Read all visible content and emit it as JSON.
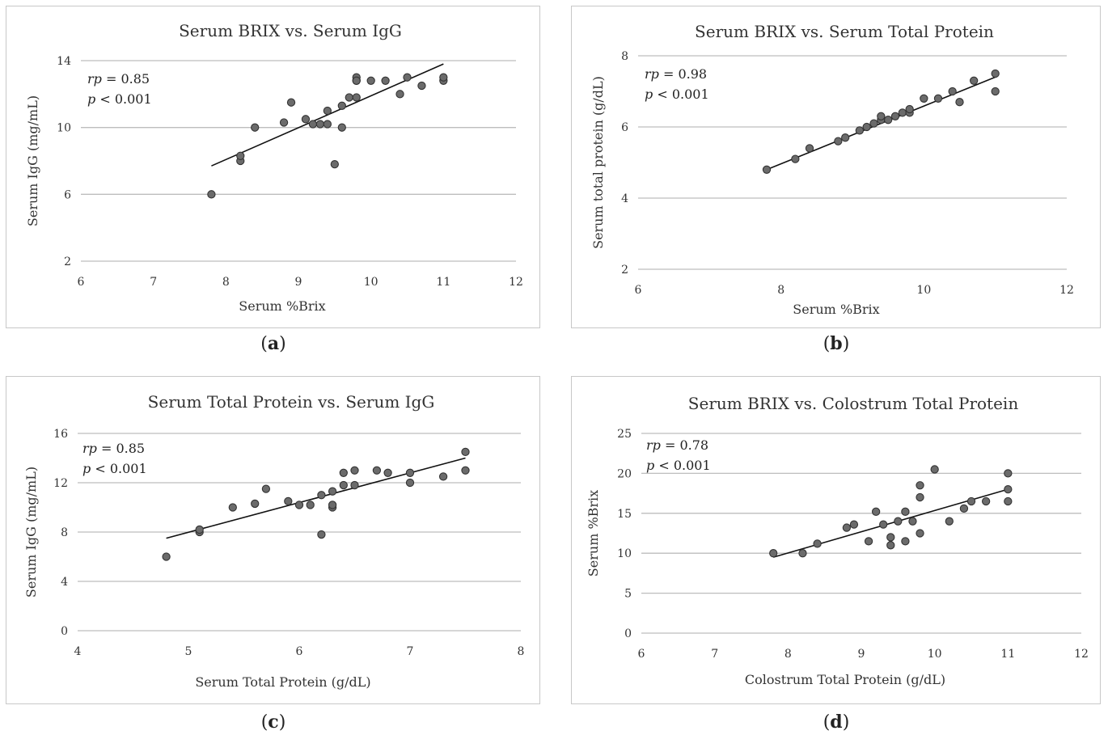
{
  "chart_data": [
    {
      "id": "a",
      "type": "scatter",
      "caption": "a",
      "title": "Serum BRIX vs. Serum IgG",
      "xlabel": "Serum %Brix",
      "ylabel": "Serum IgG (mg/mL)",
      "xlim": [
        6,
        12
      ],
      "ylim": [
        2,
        14
      ],
      "xticks": [
        6,
        7,
        8,
        9,
        10,
        11,
        12
      ],
      "yticks": [
        2,
        6,
        10,
        14
      ],
      "grid": "horizontal",
      "stat_r_label": "rp",
      "stat_r_value": "= 0.85",
      "stat_p_label": "p",
      "stat_p_value": " < 0.001",
      "trendline": {
        "x": [
          7.8,
          11.0
        ],
        "y": [
          7.7,
          13.8
        ]
      },
      "points": {
        "x": [
          7.8,
          8.2,
          8.2,
          8.4,
          8.8,
          8.9,
          9.1,
          9.2,
          9.3,
          9.4,
          9.4,
          9.5,
          9.6,
          9.6,
          9.7,
          9.8,
          9.8,
          9.8,
          9.8,
          10.0,
          10.2,
          10.4,
          10.5,
          10.7,
          11.0,
          11.0
        ],
        "y": [
          6.0,
          8.0,
          8.3,
          10.0,
          10.3,
          11.5,
          10.5,
          10.2,
          10.2,
          10.2,
          11.0,
          7.8,
          10.0,
          11.3,
          11.8,
          11.8,
          12.8,
          13.0,
          12.8,
          12.8,
          12.8,
          12.0,
          13.0,
          12.5,
          12.8,
          13.0
        ]
      }
    },
    {
      "id": "b",
      "type": "scatter",
      "caption": "b",
      "title": "Serum BRIX vs. Serum Total Protein",
      "xlabel": "Serum %Brix",
      "ylabel": "Serum total protein (g/dL)",
      "xlim": [
        6,
        12
      ],
      "ylim": [
        2,
        8
      ],
      "xticks": [
        6,
        8,
        10,
        12
      ],
      "yticks": [
        2,
        4,
        6,
        8
      ],
      "grid": "horizontal",
      "stat_r_label": "rp",
      "stat_r_value": "= 0.98",
      "stat_p_label": "p",
      "stat_p_value": " < 0.001",
      "trendline": {
        "x": [
          7.8,
          11.0
        ],
        "y": [
          4.8,
          7.4
        ]
      },
      "points": {
        "x": [
          7.8,
          8.2,
          8.4,
          8.8,
          8.9,
          9.1,
          9.2,
          9.3,
          9.4,
          9.4,
          9.5,
          9.6,
          9.7,
          9.8,
          9.8,
          10.0,
          10.2,
          10.4,
          10.5,
          10.7,
          11.0,
          11.0
        ],
        "y": [
          4.8,
          5.1,
          5.4,
          5.6,
          5.7,
          5.9,
          6.0,
          6.1,
          6.2,
          6.3,
          6.2,
          6.3,
          6.4,
          6.4,
          6.5,
          6.8,
          6.8,
          7.0,
          6.7,
          7.3,
          7.0,
          7.5
        ]
      }
    },
    {
      "id": "c",
      "type": "scatter",
      "caption": "c",
      "title": "Serum Total Protein vs. Serum IgG",
      "xlabel": "Serum Total Protein (g/dL)",
      "ylabel": "Serum IgG (mg/mL)",
      "xlim": [
        4,
        8
      ],
      "ylim": [
        0,
        16
      ],
      "xticks": [
        4,
        5,
        6,
        7,
        8
      ],
      "yticks": [
        0,
        4,
        8,
        12,
        16
      ],
      "grid": "horizontal",
      "stat_r_label": "rp",
      "stat_r_value": " = 0.85",
      "stat_p_label": "p",
      "stat_p_value": " < 0.001",
      "trendline": {
        "x": [
          4.8,
          7.5
        ],
        "y": [
          7.5,
          14.0
        ]
      },
      "points": {
        "x": [
          4.8,
          5.1,
          5.1,
          5.4,
          5.6,
          5.7,
          5.9,
          6.0,
          6.1,
          6.2,
          6.2,
          6.3,
          6.3,
          6.3,
          6.4,
          6.4,
          6.5,
          6.5,
          6.7,
          6.8,
          7.0,
          7.0,
          7.3,
          7.5,
          7.5
        ],
        "y": [
          6.0,
          8.0,
          8.2,
          10.0,
          10.3,
          11.5,
          10.5,
          10.2,
          10.2,
          11.0,
          7.8,
          10.0,
          10.2,
          11.3,
          11.8,
          12.8,
          11.8,
          13.0,
          13.0,
          12.8,
          12.8,
          12.0,
          12.5,
          13.0,
          14.5
        ]
      }
    },
    {
      "id": "d",
      "type": "scatter",
      "caption": "d",
      "title": "Serum BRIX vs. Colostrum Total Protein",
      "xlabel": "Colostrum Total Protein (g/dL)",
      "ylabel": "Serum %Brix",
      "xlim": [
        6,
        12
      ],
      "ylim": [
        0,
        25
      ],
      "xticks": [
        6,
        7,
        8,
        9,
        10,
        11,
        12
      ],
      "yticks": [
        0,
        5,
        10,
        15,
        20,
        25
      ],
      "grid": "horizontal",
      "stat_r_label": "rp",
      "stat_r_value": " = 0.78",
      "stat_p_label": "p",
      "stat_p_value": " < 0.001",
      "trendline": {
        "x": [
          7.8,
          11.0
        ],
        "y": [
          9.5,
          18.0
        ]
      },
      "points": {
        "x": [
          7.8,
          8.2,
          8.4,
          8.8,
          8.9,
          9.1,
          9.2,
          9.3,
          9.4,
          9.4,
          9.5,
          9.6,
          9.6,
          9.7,
          9.8,
          9.8,
          9.8,
          10.0,
          10.2,
          10.4,
          10.5,
          10.7,
          11.0,
          11.0,
          11.0
        ],
        "y": [
          10.0,
          10.0,
          11.2,
          13.2,
          13.6,
          11.5,
          15.2,
          13.6,
          12.0,
          11.0,
          14.0,
          11.5,
          15.2,
          14.0,
          12.5,
          17.0,
          18.5,
          20.5,
          14.0,
          15.6,
          16.5,
          16.5,
          16.5,
          18.0,
          20.0
        ]
      }
    }
  ]
}
